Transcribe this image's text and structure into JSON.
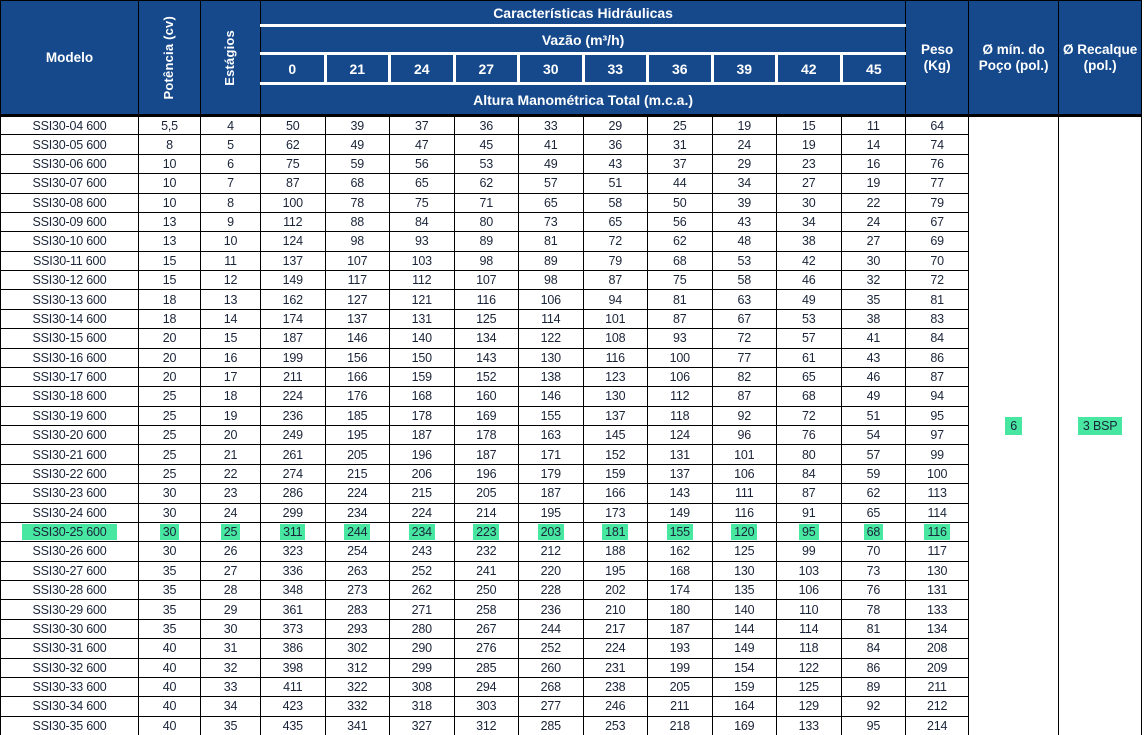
{
  "table": {
    "header": {
      "modelo": "Modelo",
      "potencia": "Potência (cv)",
      "estagios": "Estágios",
      "caracteristicas": "Características Hidráulicas",
      "vazao": "Vazão (m³/h)",
      "altura": "Altura Manométrica Total (m.c.a.)",
      "peso": "Peso (Kg)",
      "poco_min": "Ø mín. do Poço (pol.)",
      "recalque": "Ø Recalque (pol.)"
    },
    "flow_columns": [
      "0",
      "21",
      "24",
      "27",
      "30",
      "33",
      "36",
      "39",
      "42",
      "45"
    ],
    "rows": [
      {
        "modelo": "SSI30-04 600",
        "potencia": "5,5",
        "estagios": "4",
        "alturas": [
          50,
          39,
          37,
          36,
          33,
          29,
          25,
          19,
          15,
          11
        ],
        "peso": "64",
        "highlight": false
      },
      {
        "modelo": "SSI30-05 600",
        "potencia": "8",
        "estagios": "5",
        "alturas": [
          62,
          49,
          47,
          45,
          41,
          36,
          31,
          24,
          19,
          14
        ],
        "peso": "74",
        "highlight": false
      },
      {
        "modelo": "SSI30-06 600",
        "potencia": "10",
        "estagios": "6",
        "alturas": [
          75,
          59,
          56,
          53,
          49,
          43,
          37,
          29,
          23,
          16
        ],
        "peso": "76",
        "highlight": false
      },
      {
        "modelo": "SSI30-07 600",
        "potencia": "10",
        "estagios": "7",
        "alturas": [
          87,
          68,
          65,
          62,
          57,
          51,
          44,
          34,
          27,
          19
        ],
        "peso": "77",
        "highlight": false
      },
      {
        "modelo": "SSI30-08 600",
        "potencia": "10",
        "estagios": "8",
        "alturas": [
          100,
          78,
          75,
          71,
          65,
          58,
          50,
          39,
          30,
          22
        ],
        "peso": "79",
        "highlight": false
      },
      {
        "modelo": "SSI30-09 600",
        "potencia": "13",
        "estagios": "9",
        "alturas": [
          112,
          88,
          84,
          80,
          73,
          65,
          56,
          43,
          34,
          24
        ],
        "peso": "67",
        "highlight": false
      },
      {
        "modelo": "SSI30-10 600",
        "potencia": "13",
        "estagios": "10",
        "alturas": [
          124,
          98,
          93,
          89,
          81,
          72,
          62,
          48,
          38,
          27
        ],
        "peso": "69",
        "highlight": false
      },
      {
        "modelo": "SSI30-11 600",
        "potencia": "15",
        "estagios": "11",
        "alturas": [
          137,
          107,
          103,
          98,
          89,
          79,
          68,
          53,
          42,
          30
        ],
        "peso": "70",
        "highlight": false
      },
      {
        "modelo": "SSI30-12 600",
        "potencia": "15",
        "estagios": "12",
        "alturas": [
          149,
          117,
          112,
          107,
          98,
          87,
          75,
          58,
          46,
          32
        ],
        "peso": "72",
        "highlight": false
      },
      {
        "modelo": "SSI30-13 600",
        "potencia": "18",
        "estagios": "13",
        "alturas": [
          162,
          127,
          121,
          116,
          106,
          94,
          81,
          63,
          49,
          35
        ],
        "peso": "81",
        "highlight": false
      },
      {
        "modelo": "SSI30-14 600",
        "potencia": "18",
        "estagios": "14",
        "alturas": [
          174,
          137,
          131,
          125,
          114,
          101,
          87,
          67,
          53,
          38
        ],
        "peso": "83",
        "highlight": false
      },
      {
        "modelo": "SSI30-15 600",
        "potencia": "20",
        "estagios": "15",
        "alturas": [
          187,
          146,
          140,
          134,
          122,
          108,
          93,
          72,
          57,
          41
        ],
        "peso": "84",
        "highlight": false
      },
      {
        "modelo": "SSI30-16 600",
        "potencia": "20",
        "estagios": "16",
        "alturas": [
          199,
          156,
          150,
          143,
          130,
          116,
          100,
          77,
          61,
          43
        ],
        "peso": "86",
        "highlight": false
      },
      {
        "modelo": "SSI30-17 600",
        "potencia": "20",
        "estagios": "17",
        "alturas": [
          211,
          166,
          159,
          152,
          138,
          123,
          106,
          82,
          65,
          46
        ],
        "peso": "87",
        "highlight": false
      },
      {
        "modelo": "SSI30-18 600",
        "potencia": "25",
        "estagios": "18",
        "alturas": [
          224,
          176,
          168,
          160,
          146,
          130,
          112,
          87,
          68,
          49
        ],
        "peso": "94",
        "highlight": false
      },
      {
        "modelo": "SSI30-19 600",
        "potencia": "25",
        "estagios": "19",
        "alturas": [
          236,
          185,
          178,
          169,
          155,
          137,
          118,
          92,
          72,
          51
        ],
        "peso": "95",
        "highlight": false
      },
      {
        "modelo": "SSI30-20 600",
        "potencia": "25",
        "estagios": "20",
        "alturas": [
          249,
          195,
          187,
          178,
          163,
          145,
          124,
          96,
          76,
          54
        ],
        "peso": "97",
        "highlight": false
      },
      {
        "modelo": "SSI30-21 600",
        "potencia": "25",
        "estagios": "21",
        "alturas": [
          261,
          205,
          196,
          187,
          171,
          152,
          131,
          101,
          80,
          57
        ],
        "peso": "99",
        "highlight": false
      },
      {
        "modelo": "SSI30-22 600",
        "potencia": "25",
        "estagios": "22",
        "alturas": [
          274,
          215,
          206,
          196,
          179,
          159,
          137,
          106,
          84,
          59
        ],
        "peso": "100",
        "highlight": false
      },
      {
        "modelo": "SSI30-23 600",
        "potencia": "30",
        "estagios": "23",
        "alturas": [
          286,
          224,
          215,
          205,
          187,
          166,
          143,
          111,
          87,
          62
        ],
        "peso": "113",
        "highlight": false
      },
      {
        "modelo": "SSI30-24 600",
        "potencia": "30",
        "estagios": "24",
        "alturas": [
          299,
          234,
          224,
          214,
          195,
          173,
          149,
          116,
          91,
          65
        ],
        "peso": "114",
        "highlight": false
      },
      {
        "modelo": "SSI30-25 600",
        "potencia": "30",
        "estagios": "25",
        "alturas": [
          311,
          244,
          234,
          223,
          203,
          181,
          155,
          120,
          95,
          68
        ],
        "peso": "116",
        "highlight": true
      },
      {
        "modelo": "SSI30-26 600",
        "potencia": "30",
        "estagios": "26",
        "alturas": [
          323,
          254,
          243,
          232,
          212,
          188,
          162,
          125,
          99,
          70
        ],
        "peso": "117",
        "highlight": false
      },
      {
        "modelo": "SSI30-27 600",
        "potencia": "35",
        "estagios": "27",
        "alturas": [
          336,
          263,
          252,
          241,
          220,
          195,
          168,
          130,
          103,
          73
        ],
        "peso": "130",
        "highlight": false
      },
      {
        "modelo": "SSI30-28 600",
        "potencia": "35",
        "estagios": "28",
        "alturas": [
          348,
          273,
          262,
          250,
          228,
          202,
          174,
          135,
          106,
          76
        ],
        "peso": "131",
        "highlight": false
      },
      {
        "modelo": "SSI30-29 600",
        "potencia": "35",
        "estagios": "29",
        "alturas": [
          361,
          283,
          271,
          258,
          236,
          210,
          180,
          140,
          110,
          78
        ],
        "peso": "133",
        "highlight": false
      },
      {
        "modelo": "SSI30-30 600",
        "potencia": "35",
        "estagios": "30",
        "alturas": [
          373,
          293,
          280,
          267,
          244,
          217,
          187,
          144,
          114,
          81
        ],
        "peso": "134",
        "highlight": false
      },
      {
        "modelo": "SSI30-31 600",
        "potencia": "40",
        "estagios": "31",
        "alturas": [
          386,
          302,
          290,
          276,
          252,
          224,
          193,
          149,
          118,
          84
        ],
        "peso": "208",
        "highlight": false
      },
      {
        "modelo": "SSI30-32 600",
        "potencia": "40",
        "estagios": "32",
        "alturas": [
          398,
          312,
          299,
          285,
          260,
          231,
          199,
          154,
          122,
          86
        ],
        "peso": "209",
        "highlight": false
      },
      {
        "modelo": "SSI30-33 600",
        "potencia": "40",
        "estagios": "33",
        "alturas": [
          411,
          322,
          308,
          294,
          268,
          238,
          205,
          159,
          125,
          89
        ],
        "peso": "211",
        "highlight": false
      },
      {
        "modelo": "SSI30-34 600",
        "potencia": "40",
        "estagios": "34",
        "alturas": [
          423,
          332,
          318,
          303,
          277,
          246,
          211,
          164,
          129,
          92
        ],
        "peso": "212",
        "highlight": false
      },
      {
        "modelo": "SSI30-35 600",
        "potencia": "40",
        "estagios": "35",
        "alturas": [
          435,
          341,
          327,
          312,
          285,
          253,
          218,
          169,
          133,
          95
        ],
        "peso": "214",
        "highlight": false
      }
    ],
    "merged": {
      "poco_value": "6",
      "recalque_value": "3 BSP"
    }
  },
  "colors": {
    "header_bg": "#15498c",
    "highlight": "#47e7a2",
    "body_text": "#1a2438",
    "border": "#000000"
  }
}
